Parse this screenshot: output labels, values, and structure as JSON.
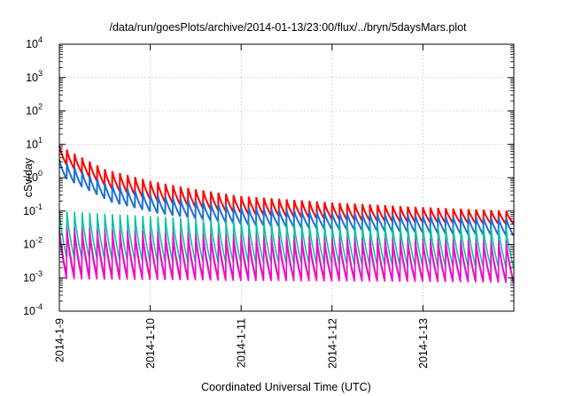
{
  "chart_data": {
    "type": "line",
    "title": "/data/run/goesPlots/archive/2014-01-13/23:00/flux/../bryn/5daysMars.plot",
    "xlabel": "Coordinated Universal Time (UTC)",
    "ylabel": "cSv/day",
    "y_scale": "log",
    "ylim": [
      0.0001,
      10000
    ],
    "xlim": [
      "2014-01-09T00:00",
      "2014-01-14T00:00"
    ],
    "grid": true,
    "legend": "none",
    "y_ticks": [
      {
        "base": "10",
        "exp": "-4",
        "value": 0.0001
      },
      {
        "base": "10",
        "exp": "-3",
        "value": 0.001
      },
      {
        "base": "10",
        "exp": "-2",
        "value": 0.01
      },
      {
        "base": "10",
        "exp": "-1",
        "value": 0.1
      },
      {
        "base": "10",
        "exp": "0",
        "value": 1
      },
      {
        "base": "10",
        "exp": "1",
        "value": 10
      },
      {
        "base": "10",
        "exp": "2",
        "value": 100
      },
      {
        "base": "10",
        "exp": "3",
        "value": 1000
      },
      {
        "base": "10",
        "exp": "4",
        "value": 10000
      }
    ],
    "x_ticks": [
      {
        "label": "2014-1-9",
        "value": "2014-01-09T00:00"
      },
      {
        "label": "2014-1-10",
        "value": "2014-01-10T00:00"
      },
      {
        "label": "2014-1-11",
        "value": "2014-01-11T00:00"
      },
      {
        "label": "2014-1-12",
        "value": "2014-01-12T00:00"
      },
      {
        "label": "2014-1-13",
        "value": "2014-01-13T00:00"
      }
    ],
    "sawtooth_period_hours": 2,
    "series": [
      {
        "color": "#ff0000",
        "width": 2,
        "x": [
          "2014-01-09T00:00",
          "2014-01-09T12:00",
          "2014-01-10T00:00",
          "2014-01-10T12:00",
          "2014-01-11T00:00",
          "2014-01-12T00:00",
          "2014-01-13T00:00",
          "2014-01-14T00:00"
        ],
        "peak": [
          9,
          1.8,
          0.8,
          0.45,
          0.28,
          0.18,
          0.13,
          0.1
        ],
        "trough": [
          2.4,
          0.45,
          0.2,
          0.12,
          0.08,
          0.055,
          0.045,
          0.04
        ]
      },
      {
        "color": "#1f6fd6",
        "width": 2,
        "x": [
          "2014-01-09T00:00",
          "2014-01-09T12:00",
          "2014-01-10T00:00",
          "2014-01-10T12:00",
          "2014-01-11T00:00",
          "2014-01-12T00:00",
          "2014-01-13T00:00",
          "2014-01-14T00:00"
        ],
        "peak": [
          3.5,
          0.7,
          0.32,
          0.2,
          0.13,
          0.09,
          0.075,
          0.06
        ],
        "trough": [
          0.9,
          0.18,
          0.085,
          0.055,
          0.038,
          0.028,
          0.022,
          0.018
        ]
      },
      {
        "color": "#00c0a0",
        "width": 1.5,
        "x": [
          "2014-01-09T00:00",
          "2014-01-10T00:00",
          "2014-01-11T00:00",
          "2014-01-12T00:00",
          "2014-01-13T00:00",
          "2014-01-14T00:00"
        ],
        "peak": [
          0.1,
          0.07,
          0.05,
          0.04,
          0.035,
          0.03
        ],
        "trough": [
          0.004,
          0.003,
          0.0028,
          0.0025,
          0.0022,
          0.002
        ]
      },
      {
        "color": "#8e44ad",
        "width": 1.5,
        "x": [
          "2014-01-09T00:00",
          "2014-01-10T00:00",
          "2014-01-11T00:00",
          "2014-01-12T00:00",
          "2014-01-13T00:00",
          "2014-01-14T00:00"
        ],
        "peak": [
          0.035,
          0.025,
          0.02,
          0.017,
          0.015,
          0.013
        ],
        "trough": [
          0.0012,
          0.001,
          0.00095,
          0.0009,
          0.00085,
          0.0008
        ]
      },
      {
        "color": "#ff00d0",
        "width": 1.5,
        "x": [
          "2014-01-09T00:00",
          "2014-01-10T00:00",
          "2014-01-11T00:00",
          "2014-01-12T00:00",
          "2014-01-13T00:00",
          "2014-01-14T00:00"
        ],
        "peak": [
          0.025,
          0.018,
          0.014,
          0.012,
          0.011,
          0.01
        ],
        "trough": [
          0.0009,
          0.00085,
          0.0008,
          0.00078,
          0.00075,
          0.0007
        ]
      }
    ]
  }
}
